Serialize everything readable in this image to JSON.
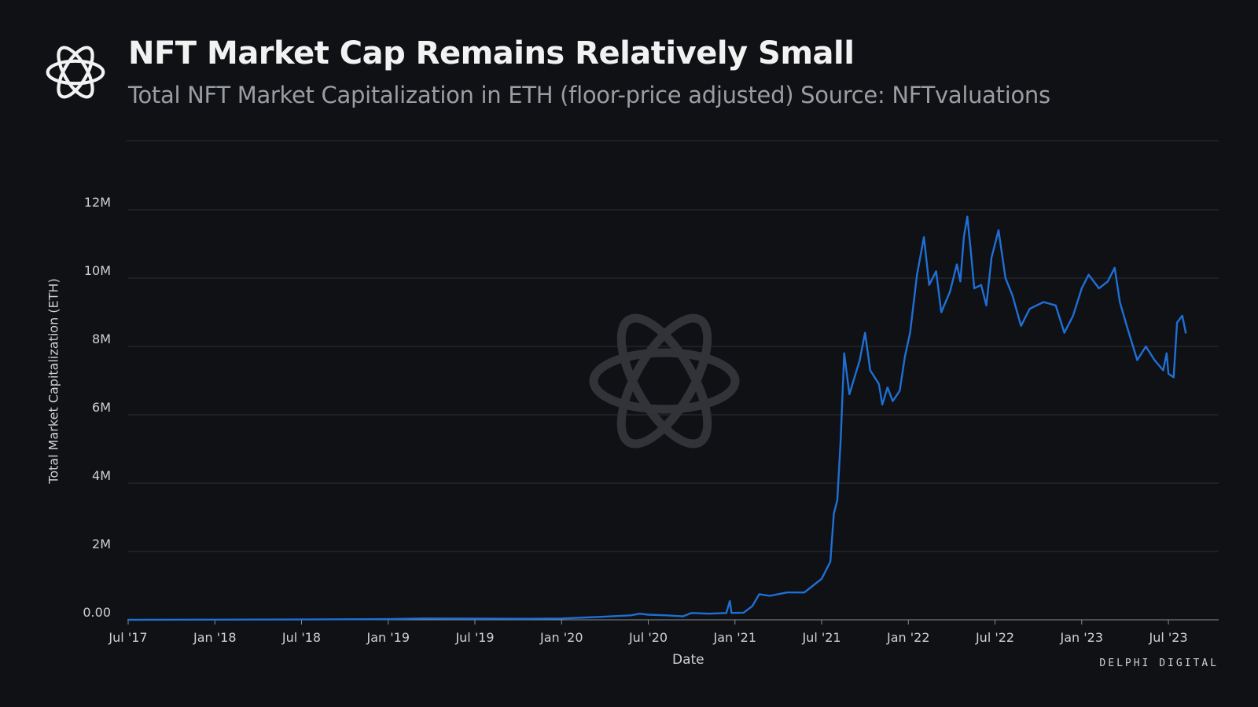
{
  "header": {
    "title": "NFT Market Cap Remains Relatively Small",
    "subtitle": "Total NFT Market Capitalization in ETH (floor-price adjusted) Source: NFTvaluations",
    "logo_icon": "delphi-knot-logo-icon"
  },
  "brand": "DELPHI DIGITAL",
  "colors": {
    "background": "#0f1114",
    "line": "#1f6fd6",
    "grid": "#2d3036",
    "text": "#d0d0d0",
    "watermark": "#3a3c41"
  },
  "chart_data": {
    "type": "line",
    "title": "NFT Market Cap Remains Relatively Small",
    "subtitle": "Total NFT Market Capitalization in ETH (floor-price adjusted) Source: NFTvaluations",
    "xlabel": "Date",
    "ylabel": "Total Market Capitalization (ETH)",
    "ylim": [
      0,
      14000000
    ],
    "xlim": [
      2017.5,
      2023.79
    ],
    "grid": true,
    "legend": "none",
    "y_ticks": [
      {
        "value": 0,
        "label": "0.00"
      },
      {
        "value": 2000000,
        "label": "2M"
      },
      {
        "value": 4000000,
        "label": "4M"
      },
      {
        "value": 6000000,
        "label": "6M"
      },
      {
        "value": 8000000,
        "label": "8M"
      },
      {
        "value": 10000000,
        "label": "10M"
      },
      {
        "value": 12000000,
        "label": "12M"
      }
    ],
    "x_ticks": [
      {
        "value": 2017.5,
        "label": "Jul '17"
      },
      {
        "value": 2018.0,
        "label": "Jan '18"
      },
      {
        "value": 2018.5,
        "label": "Jul '18"
      },
      {
        "value": 2019.0,
        "label": "Jan '19"
      },
      {
        "value": 2019.5,
        "label": "Jul '19"
      },
      {
        "value": 2020.0,
        "label": "Jan '20"
      },
      {
        "value": 2020.5,
        "label": "Jul '20"
      },
      {
        "value": 2021.0,
        "label": "Jan '21"
      },
      {
        "value": 2021.5,
        "label": "Jul '21"
      },
      {
        "value": 2022.0,
        "label": "Jan '22"
      },
      {
        "value": 2022.5,
        "label": "Jul '22"
      },
      {
        "value": 2023.0,
        "label": "Jan '23"
      },
      {
        "value": 2023.5,
        "label": "Jul '23"
      }
    ],
    "series": [
      {
        "name": "Total NFT Market Capitalization (ETH)",
        "points": [
          [
            2017.5,
            0
          ],
          [
            2018.0,
            5000
          ],
          [
            2018.5,
            10000
          ],
          [
            2019.0,
            20000
          ],
          [
            2019.2,
            40000
          ],
          [
            2019.5,
            35000
          ],
          [
            2019.8,
            30000
          ],
          [
            2020.0,
            40000
          ],
          [
            2020.2,
            80000
          ],
          [
            2020.4,
            130000
          ],
          [
            2020.45,
            180000
          ],
          [
            2020.5,
            150000
          ],
          [
            2020.6,
            130000
          ],
          [
            2020.7,
            100000
          ],
          [
            2020.75,
            200000
          ],
          [
            2020.85,
            180000
          ],
          [
            2020.95,
            200000
          ],
          [
            2020.97,
            550000
          ],
          [
            2020.98,
            200000
          ],
          [
            2021.05,
            210000
          ],
          [
            2021.1,
            400000
          ],
          [
            2021.14,
            750000
          ],
          [
            2021.2,
            700000
          ],
          [
            2021.3,
            800000
          ],
          [
            2021.4,
            800000
          ],
          [
            2021.45,
            1000000
          ],
          [
            2021.5,
            1200000
          ],
          [
            2021.55,
            1700000
          ],
          [
            2021.57,
            3100000
          ],
          [
            2021.59,
            3500000
          ],
          [
            2021.61,
            5300000
          ],
          [
            2021.63,
            7800000
          ],
          [
            2021.66,
            6600000
          ],
          [
            2021.72,
            7600000
          ],
          [
            2021.75,
            8400000
          ],
          [
            2021.78,
            7300000
          ],
          [
            2021.83,
            6900000
          ],
          [
            2021.85,
            6300000
          ],
          [
            2021.88,
            6800000
          ],
          [
            2021.91,
            6400000
          ],
          [
            2021.95,
            6700000
          ],
          [
            2021.98,
            7700000
          ],
          [
            2022.01,
            8400000
          ],
          [
            2022.05,
            10100000
          ],
          [
            2022.09,
            11200000
          ],
          [
            2022.12,
            9800000
          ],
          [
            2022.16,
            10200000
          ],
          [
            2022.19,
            9000000
          ],
          [
            2022.24,
            9600000
          ],
          [
            2022.28,
            10400000
          ],
          [
            2022.3,
            9900000
          ],
          [
            2022.32,
            11200000
          ],
          [
            2022.34,
            11800000
          ],
          [
            2022.36,
            10800000
          ],
          [
            2022.38,
            9700000
          ],
          [
            2022.42,
            9800000
          ],
          [
            2022.45,
            9200000
          ],
          [
            2022.48,
            10600000
          ],
          [
            2022.52,
            11400000
          ],
          [
            2022.56,
            10000000
          ],
          [
            2022.6,
            9500000
          ],
          [
            2022.65,
            8600000
          ],
          [
            2022.7,
            9100000
          ],
          [
            2022.78,
            9300000
          ],
          [
            2022.85,
            9200000
          ],
          [
            2022.9,
            8400000
          ],
          [
            2022.95,
            8900000
          ],
          [
            2023.0,
            9700000
          ],
          [
            2023.04,
            10100000
          ],
          [
            2023.1,
            9700000
          ],
          [
            2023.15,
            9900000
          ],
          [
            2023.19,
            10300000
          ],
          [
            2023.22,
            9300000
          ],
          [
            2023.26,
            8600000
          ],
          [
            2023.32,
            7600000
          ],
          [
            2023.37,
            8000000
          ],
          [
            2023.42,
            7600000
          ],
          [
            2023.47,
            7300000
          ],
          [
            2023.49,
            7800000
          ],
          [
            2023.5,
            7200000
          ],
          [
            2023.53,
            7100000
          ],
          [
            2023.55,
            8700000
          ],
          [
            2023.58,
            8900000
          ],
          [
            2023.6,
            8400000
          ]
        ]
      }
    ]
  }
}
